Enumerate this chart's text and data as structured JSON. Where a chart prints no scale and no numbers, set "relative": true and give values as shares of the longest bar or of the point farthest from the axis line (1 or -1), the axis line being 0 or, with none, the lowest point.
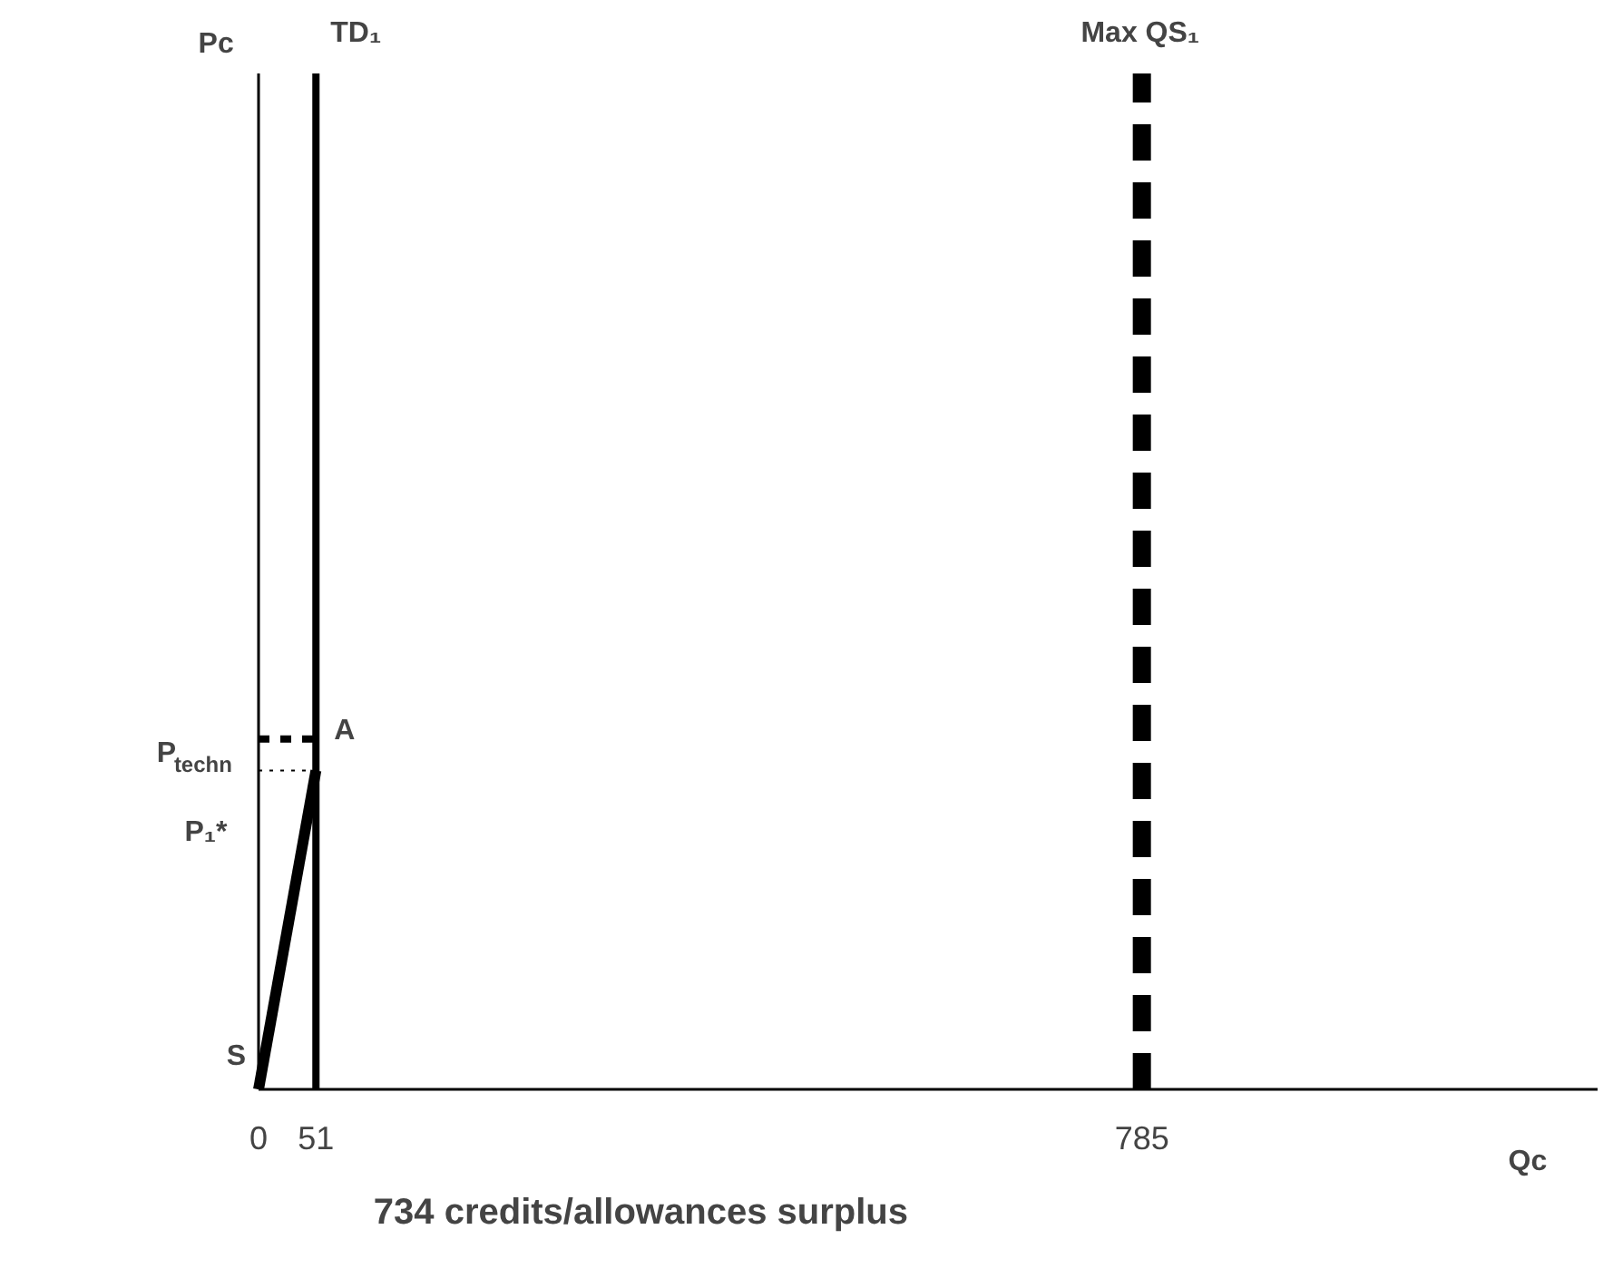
{
  "chart_data": {
    "type": "line",
    "relative": true,
    "x": [
      0,
      51
    ],
    "series": [
      {
        "name": "S",
        "color": "#000000",
        "values": [
          0,
          0.91
        ],
        "line_style": "solid"
      },
      {
        "name": "P$_{techn}$",
        "color": "#000000",
        "values": [
          1,
          1
        ],
        "line_style": "dashed"
      },
      {
        "name": "P₁*",
        "color": "#000000",
        "values": [
          0.91,
          0.91
        ],
        "line_style": "dotted"
      }
    ],
    "xlim": [
      0,
      1190
    ],
    "xticks": [
      0,
      51,
      785
    ],
    "xlabel": "Qc",
    "ref_lines": [
      {
        "axis": "x",
        "value": 51,
        "label": "TD₁",
        "color": "#000000",
        "line_style": "solid"
      },
      {
        "axis": "x",
        "value": 785,
        "label": "Max QS₁",
        "color": "#000000",
        "line_style": "dashed"
      }
    ],
    "annotations": [
      {
        "text": "A",
        "x": 51,
        "y": 0.91
      },
      "Pc",
      "734 credits/allowances surplus"
    ],
    "grid": false,
    "legend": false,
    "marker": "none"
  }
}
